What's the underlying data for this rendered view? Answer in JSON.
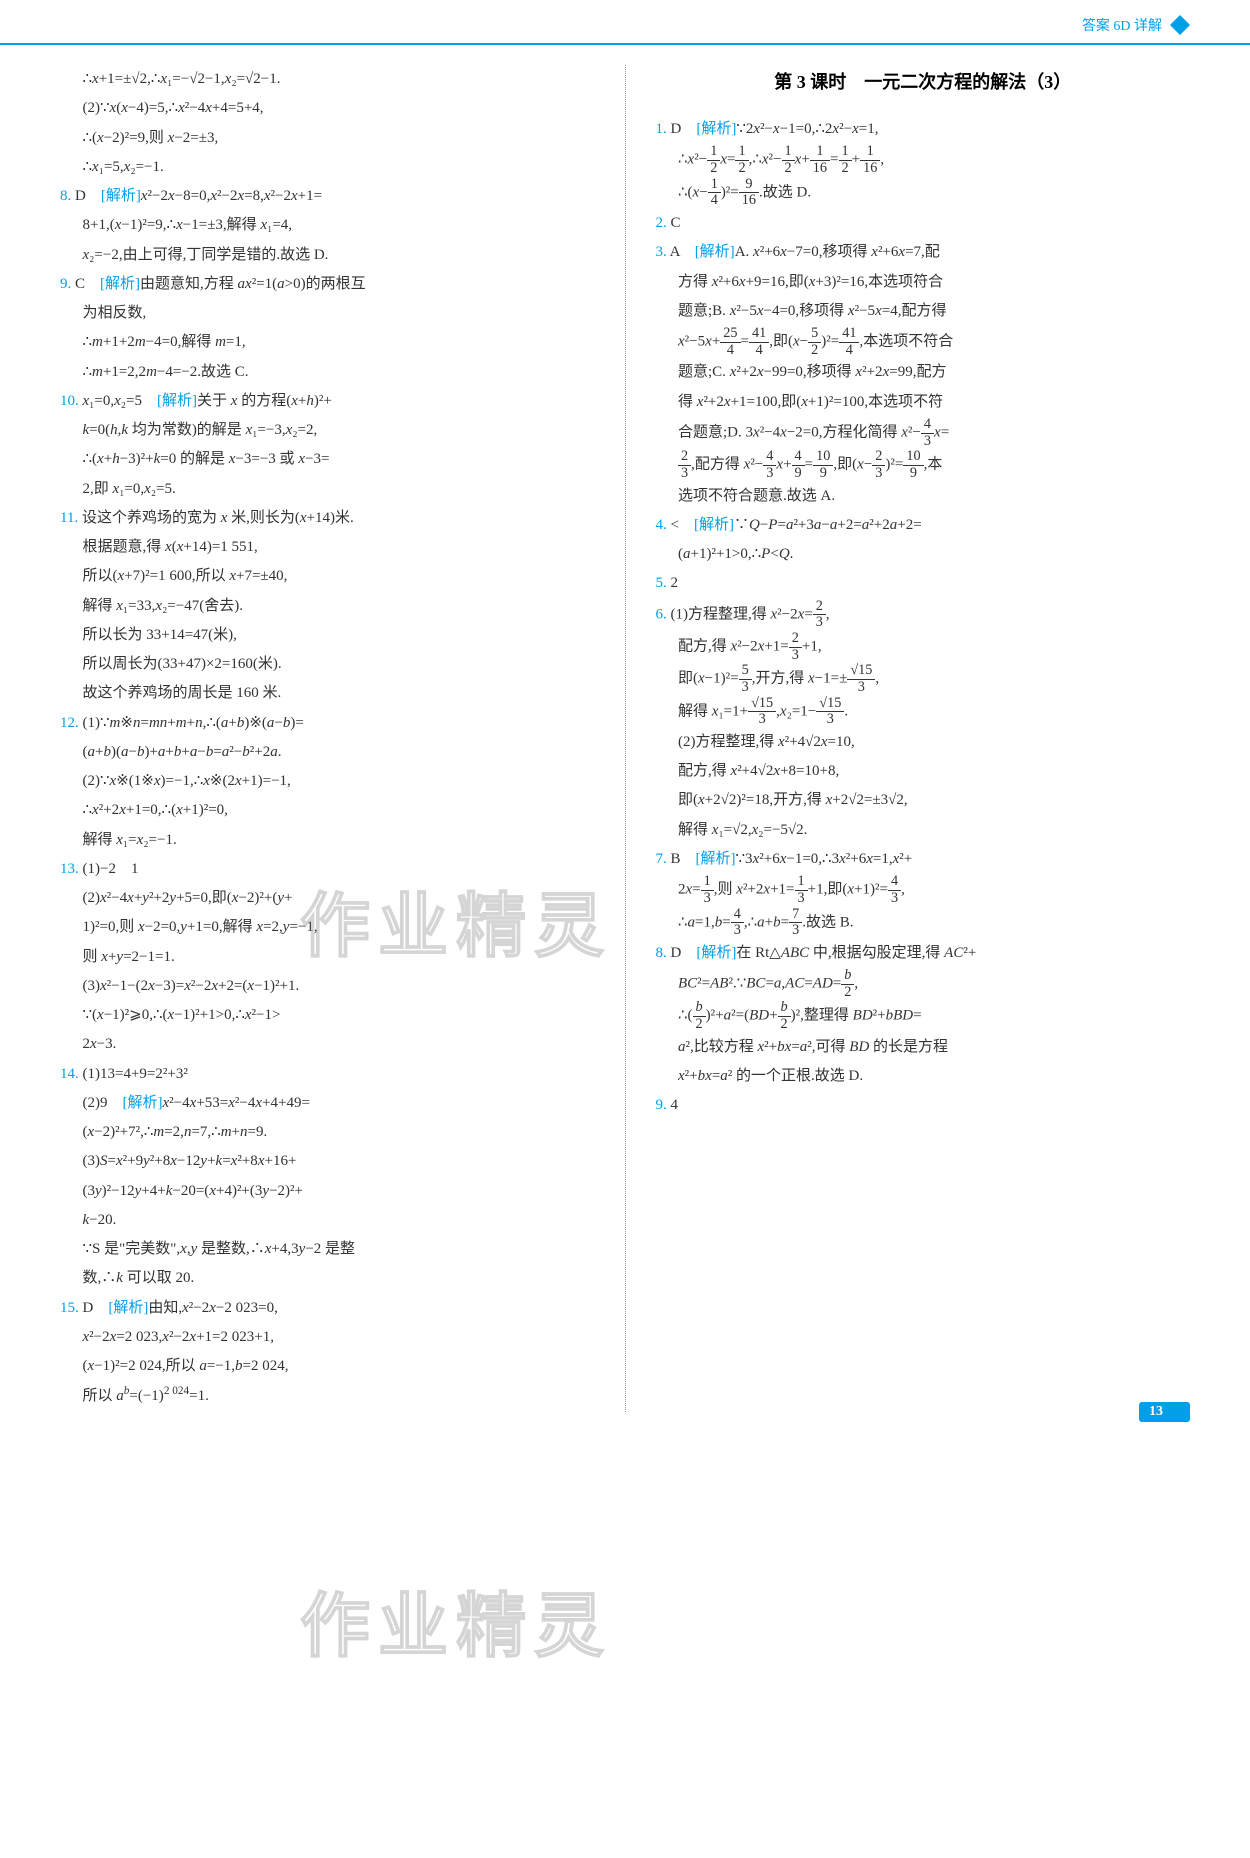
{
  "header": {
    "text": "答案 6D 详解"
  },
  "watermark_text": "作业精灵",
  "page_number": "13",
  "left_column": {
    "lines": [
      "∴x+1=±√2,∴x₁=−√2−1,x₂=√2−1.",
      "(2)∵x(x−4)=5,∴x²−4x+4=5+4,",
      "∴(x−2)²=9,则 x−2=±3,",
      "∴x₁=5,x₂=−1.",
      "8. D　[解析]x²−2x−8=0,x²−2x=8,x²−2x+1=",
      "8+1,(x−1)²=9,∴x−1=±3,解得 x₁=4,",
      "x₂=−2,由上可得,丁同学是错的.故选 D.",
      "9. C　[解析]由题意知,方程 ax²=1(a>0)的两根互",
      "为相反数,",
      "∴m+1+2m−4=0,解得 m=1,",
      "∴m+1=2,2m−4=−2.故选 C.",
      "10. x₁=0,x₂=5　[解析]关于 x 的方程(x+h)²+",
      "k=0(h,k 均为常数)的解是 x₁=−3,x₂=2,",
      "∴(x+h−3)²+k=0 的解是 x−3=−3 或 x−3=",
      "2,即 x₁=0,x₂=5.",
      "11. 设这个养鸡场的宽为 x 米,则长为(x+14)米.",
      "根据题意,得 x(x+14)=1 551,",
      "所以(x+7)²=1 600,所以 x+7=±40,",
      "解得 x₁=33,x₂=−47(舍去).",
      "所以长为 33+14=47(米),",
      "所以周长为(33+47)×2=160(米).",
      "故这个养鸡场的周长是 160 米.",
      "12. (1)∵m※n=mn+m+n,∴(a+b)※(a−b)=",
      "(a+b)(a−b)+a+b+a−b=a²−b²+2a.",
      "(2)∵x※(1※x)=−1,∴x※(2x+1)=−1,",
      "∴x²+2x+1=0,∴(x+1)²=0,",
      "解得 x₁=x₂=−1.",
      "13. (1)−2　1",
      "(2)x²−4x+y²+2y+5=0,即(x−2)²+(y+",
      "1)²=0,则 x−2=0,y+1=0,解得 x=2,y=−1,",
      "则 x+y=2−1=1.",
      "(3)x²−1−(2x−3)=x²−2x+2=(x−1)²+1.",
      "∵(x−1)²⩾0,∴(x−1)²+1>0,∴x²−1>",
      "2x−3.",
      "14. (1)13=4+9=2²+3²",
      "(2)9　[解析]x²−4x+53=x²−4x+4+49=",
      "(x−2)²+7²,∴m=2,n=7,∴m+n=9.",
      "(3)S=x²+9y²+8x−12y+k=x²+8x+16+",
      "(3y)²−12y+4+k−20=(x+4)²+(3y−2)²+",
      "k−20.",
      "∵S 是\"完美数\",x,y 是整数,∴x+4,3y−2 是整",
      "数,∴k 可以取 20.",
      "15. D　[解析]由知,x²−2x−2 023=0,",
      "x²−2x=2 023,x²−2x+1=2 023+1,",
      "(x−1)²=2 024,所以 a=−1,b=2 024,",
      "所以 aᵇ=(−1)²⁰²⁴=1."
    ]
  },
  "right_column": {
    "title": "第 3 课时　一元二次方程的解法（3）",
    "lines": [
      "1. D　[解析]∵2x²−x−1=0,∴2x²−x=1,",
      "∴x²−(1/2)x=(1/2),∴x²−(1/2)x+(1/16)=(1/2)+(1/16),",
      "∴(x−(1/4))²=(9/16).故选 D.",
      "2. C",
      "3. A　[解析]A. x²+6x−7=0,移项得 x²+6x=7,配",
      "方得 x²+6x+9=16,即(x+3)²=16,本选项符合",
      "题意;B. x²−5x−4=0,移项得 x²−5x=4,配方得",
      "x²−5x+(25/4)=(41/4),即(x−(5/2))²=(41/4),本选项不符合",
      "题意;C. x²+2x−99=0,移项得 x²+2x=99,配方",
      "得 x²+2x+1=100,即(x+1)²=100,本选项不符",
      "合题意;D. 3x²−4x−2=0,方程化简得 x²−(4/3)x=",
      "(2/3),配方得 x²−(4/3)x+(4/9)=(10/9),即(x−(2/3))²=(10/9),本",
      "选项不符合题意.故选 A.",
      "4. <　[解析]∵Q−P=a²+3a−a+2=a²+2a+2=",
      "(a+1)²+1>0,∴P<Q.",
      "5. 2",
      "6. (1)方程整理,得 x²−2x=(2/3),",
      "配方,得 x²−2x+1=(2/3)+1,",
      "即(x−1)²=(5/3),开方,得 x−1=±(√15/3),",
      "解得 x₁=1+(√15/3),x₂=1−(√15/3).",
      "(2)方程整理,得 x²+4√2x=10,",
      "配方,得 x²+4√2x+8=10+8,",
      "即(x+2√2)²=18,开方,得 x+2√2=±3√2,",
      "解得 x₁=√2,x₂=−5√2.",
      "7. B　[解析]∵3x²+6x−1=0,∴3x²+6x=1,x²+",
      "2x=(1/3),则 x²+2x+1=(1/3)+1,即(x+1)²=(4/3),",
      "∴a=1,b=(4/3),∴a+b=(7/3).故选 B.",
      "8. D　[解析]在 Rt△ABC 中,根据勾股定理,得 AC²+",
      "BC²=AB².∵BC=a,AC=AD=(b/2),",
      "∴(b/2)²+a²=(BD+(b/2))²,整理得 BD²+bBD=",
      "a²,比较方程 x²+bx=a²,可得 BD 的长是方程",
      "x²+bx=a² 的一个正根.故选 D.",
      "9. 4"
    ]
  },
  "colors": {
    "accent": "#00a0e9",
    "text": "#333333",
    "watermark": "rgba(180,180,180,0.35)"
  }
}
